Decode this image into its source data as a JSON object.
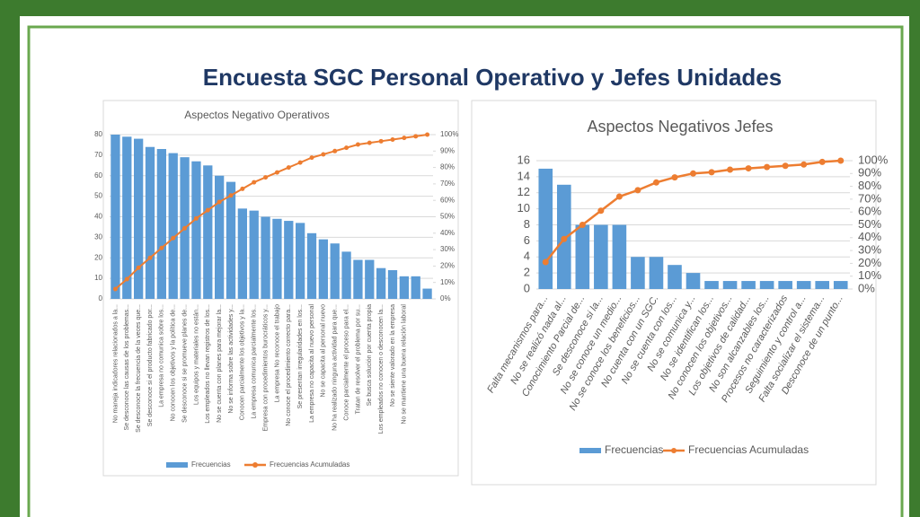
{
  "title": "Encuesta SGC Personal Operativo y Jefes Unidades",
  "chart_data": [
    {
      "type": "pareto",
      "title": "Aspectos Negativo Operativos",
      "categories": [
        "No maneja indicadores relacionados a la...",
        "Se desconoce las causas de los problemas...",
        "Se desconoce la frecuencia de la veces que...",
        "Se desconoce si el producto fabricado por...",
        "La empresa no comunica sobre los...",
        "No conocen los objetivos y la política de...",
        "Se desconoce si se promueve planes de...",
        "Los equipos y materiales no están...",
        "Los empleados no llevan registros de los...",
        "No se cuenta con planes para mejorar la...",
        "No se informa sobre las actividades y...",
        "Conocen parcialmente los objetivos y la...",
        "La empresa comunica parcialmente los...",
        "Empresa con procedimientos burocráticos y...",
        "La empresa No reconoce el trabajo",
        "No conoce el procedimiento correcto para...",
        "Se presentan irregularidades en los...",
        "La empresa no capacita al nuevo personal",
        "No se capacita al personal nuevo",
        "No ha realizado ninguna actividad para que...",
        "Conoce parcialmente el proceso para el...",
        "Tratan de resolver el problema por su...",
        "Se busca solución por cuenta propia",
        "Los empleados no conocen o desconocen la...",
        "No se siente valorado en la empresa",
        "No se mantiene una buena relación laboral",
        null,
        null
      ],
      "series": [
        {
          "name": "Frecuencias",
          "color": "#5b9bd5",
          "values": [
            80,
            79,
            78,
            74,
            73,
            71,
            69,
            67,
            65,
            60,
            57,
            44,
            43,
            40,
            39,
            38,
            37,
            32,
            29,
            27,
            23,
            19,
            19,
            15,
            14,
            11,
            11,
            5
          ]
        },
        {
          "name": "Frecuencias Acumuladas",
          "color": "#ed7d31",
          "axis": "y2",
          "values": [
            6,
            12,
            19,
            25,
            31,
            37,
            43,
            49,
            54,
            59,
            63,
            67,
            71,
            74,
            77,
            80,
            83,
            86,
            88,
            90,
            92,
            94,
            95,
            96,
            97,
            98,
            99,
            100
          ]
        }
      ],
      "ylim": [
        0,
        80
      ],
      "yticks": [
        0,
        10,
        20,
        30,
        40,
        50,
        60,
        70,
        80
      ],
      "y2lim": [
        0,
        100
      ],
      "y2ticks": [
        {
          "value": 0,
          "label": "0%"
        },
        {
          "value": 10,
          "label": "10%"
        },
        {
          "value": 20,
          "label": "20%"
        },
        {
          "value": 30,
          "label": "30%"
        },
        {
          "value": 40,
          "label": "40%"
        },
        {
          "value": 50,
          "label": "50%"
        },
        {
          "value": 60,
          "label": "60%"
        },
        {
          "value": 70,
          "label": "70%"
        },
        {
          "value": 80,
          "label": "80%"
        },
        {
          "value": 90,
          "label": "90%"
        },
        {
          "value": 100,
          "label": "100%"
        }
      ],
      "legend": "bottom"
    },
    {
      "type": "pareto",
      "title": "Aspectos Negativos Jefes",
      "categories": [
        "Falta mecanismos para...",
        "No se realizó nada al...",
        "Conocimiento Parcial de...",
        "Se desconoce si la...",
        "No se conoce un medio...",
        "No se conoce los beneficios...",
        "No cuenta con un SGC.",
        "No se cuenta con los...",
        "No se comunica y...",
        "No se identifican los...",
        "No conocen los objetivos...",
        "Los objetivos de calidad...",
        "No son alcanzables los...",
        "Procesos no caracterizados",
        "Seguimiento y control a...",
        "Falta socializar el sistema...",
        "Desconoce de un punto..."
      ],
      "series": [
        {
          "name": "Frecuencias",
          "color": "#5b9bd5",
          "values": [
            15,
            13,
            8,
            8,
            8,
            4,
            4,
            3,
            2,
            1,
            1,
            1,
            1,
            1,
            1,
            1,
            1
          ]
        },
        {
          "name": "Frecuencias Acumuladas",
          "color": "#ed7d31",
          "axis": "y2",
          "values": [
            21,
            39,
            50,
            61,
            72,
            77,
            83,
            87,
            90,
            91,
            93,
            94,
            95,
            96,
            97,
            99,
            100
          ]
        }
      ],
      "ylim": [
        0,
        16
      ],
      "yticks": [
        0,
        2,
        4,
        6,
        8,
        10,
        12,
        14,
        16
      ],
      "y2lim": [
        0,
        100
      ],
      "y2ticks": [
        {
          "value": 0,
          "label": "0%"
        },
        {
          "value": 10,
          "label": "10%"
        },
        {
          "value": 20,
          "label": "20%"
        },
        {
          "value": 30,
          "label": "30%"
        },
        {
          "value": 40,
          "label": "40%"
        },
        {
          "value": 50,
          "label": "50%"
        },
        {
          "value": 60,
          "label": "60%"
        },
        {
          "value": 70,
          "label": "70%"
        },
        {
          "value": 80,
          "label": "80%"
        },
        {
          "value": 90,
          "label": "90%"
        },
        {
          "value": 100,
          "label": "100%"
        }
      ],
      "legend": "bottom"
    }
  ]
}
